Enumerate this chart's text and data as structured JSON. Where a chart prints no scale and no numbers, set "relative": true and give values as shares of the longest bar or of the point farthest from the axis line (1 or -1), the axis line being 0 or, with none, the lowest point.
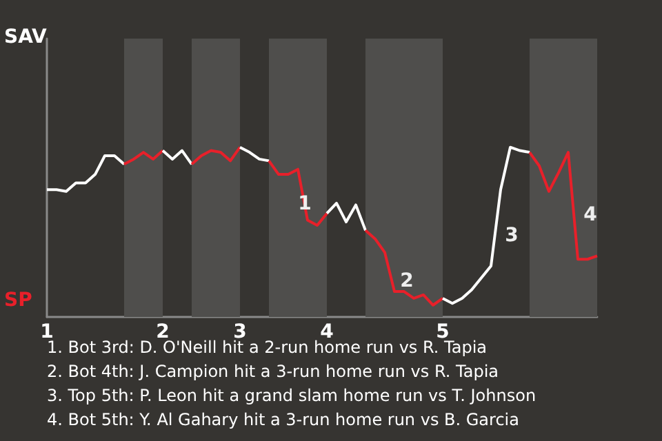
{
  "chart_data": {
    "type": "line",
    "relative": true,
    "categories": [
      "1",
      null,
      null,
      null,
      null,
      null,
      null,
      null,
      null,
      null,
      null,
      null,
      "2",
      null,
      null,
      null,
      null,
      null,
      null,
      null,
      "3",
      null,
      null,
      null,
      null,
      null,
      null,
      null,
      null,
      "4",
      null,
      null,
      null,
      null,
      null,
      null,
      null,
      null,
      null,
      null,
      null,
      "5",
      null,
      null,
      null,
      null,
      null,
      null,
      null,
      null,
      null,
      null,
      null,
      null,
      null,
      null,
      null,
      null
    ],
    "marker": "none",
    "line_style": "solid",
    "series": [
      {
        "color": "#ffffff",
        "values": [
          0.75,
          0.75,
          0.74,
          0.79,
          0.79,
          0.84,
          0.95,
          0.95,
          0.9,
          null,
          null,
          null,
          null,
          null,
          null,
          null,
          null,
          null,
          null,
          null,
          null,
          null,
          null,
          null,
          null,
          null,
          null,
          null,
          null,
          null,
          null,
          null,
          null,
          null,
          null,
          null,
          null,
          null,
          null,
          null,
          null,
          null,
          null,
          null,
          null,
          null,
          null,
          null,
          null,
          null,
          null,
          null,
          null,
          null,
          null,
          null,
          null,
          null
        ]
      },
      {
        "color": "#e8202a",
        "values": [
          null,
          null,
          null,
          null,
          null,
          null,
          null,
          null,
          0.9,
          0.93,
          0.97,
          0.93,
          0.98,
          null,
          null,
          null,
          null,
          null,
          null,
          null,
          null,
          null,
          null,
          null,
          null,
          null,
          null,
          null,
          null,
          null,
          null,
          null,
          null,
          null,
          null,
          null,
          null,
          null,
          null,
          null,
          null,
          null,
          null,
          null,
          null,
          null,
          null,
          null,
          null,
          null,
          null,
          null,
          null,
          null,
          null,
          null,
          null,
          null
        ]
      },
      {
        "color": "#ffffff",
        "values": [
          null,
          null,
          null,
          null,
          null,
          null,
          null,
          null,
          null,
          null,
          null,
          null,
          0.98,
          0.93,
          0.98,
          0.9,
          null,
          null,
          null,
          null,
          null,
          null,
          null,
          null,
          null,
          null,
          null,
          null,
          null,
          null,
          null,
          null,
          null,
          null,
          null,
          null,
          null,
          null,
          null,
          null,
          null,
          null,
          null,
          null,
          null,
          null,
          null,
          null,
          null,
          null,
          null,
          null,
          null,
          null,
          null,
          null,
          null,
          null
        ]
      },
      {
        "color": "#e8202a",
        "values": [
          null,
          null,
          null,
          null,
          null,
          null,
          null,
          null,
          null,
          null,
          null,
          null,
          null,
          null,
          null,
          0.9,
          0.95,
          0.98,
          0.97,
          0.92,
          1,
          null,
          null,
          null,
          null,
          null,
          null,
          null,
          null,
          null,
          null,
          null,
          null,
          null,
          null,
          null,
          null,
          null,
          null,
          null,
          null,
          null,
          null,
          null,
          null,
          null,
          null,
          null,
          null,
          null,
          null,
          null,
          null,
          null,
          null,
          null,
          null,
          null
        ]
      },
      {
        "color": "#ffffff",
        "values": [
          null,
          null,
          null,
          null,
          null,
          null,
          null,
          null,
          null,
          null,
          null,
          null,
          null,
          null,
          null,
          null,
          null,
          null,
          null,
          null,
          1,
          0.97,
          0.93,
          0.92,
          null,
          null,
          null,
          null,
          null,
          null,
          null,
          null,
          null,
          null,
          null,
          null,
          null,
          null,
          null,
          null,
          null,
          null,
          null,
          null,
          null,
          null,
          null,
          null,
          null,
          null,
          null,
          null,
          null,
          null,
          null,
          null,
          null,
          null
        ]
      },
      {
        "color": "#e8202a",
        "values": [
          null,
          null,
          null,
          null,
          null,
          null,
          null,
          null,
          null,
          null,
          null,
          null,
          null,
          null,
          null,
          null,
          null,
          null,
          null,
          null,
          null,
          null,
          null,
          0.92,
          0.84,
          0.84,
          0.87,
          0.57,
          0.54,
          0.61,
          null,
          null,
          null,
          null,
          null,
          null,
          null,
          null,
          null,
          null,
          null,
          null,
          null,
          null,
          null,
          null,
          null,
          null,
          null,
          null,
          null,
          null,
          null,
          null,
          null,
          null,
          null,
          null
        ]
      },
      {
        "color": "#ffffff",
        "values": [
          null,
          null,
          null,
          null,
          null,
          null,
          null,
          null,
          null,
          null,
          null,
          null,
          null,
          null,
          null,
          null,
          null,
          null,
          null,
          null,
          null,
          null,
          null,
          null,
          null,
          null,
          null,
          null,
          null,
          0.61,
          0.67,
          0.56,
          0.66,
          0.51,
          null,
          null,
          null,
          null,
          null,
          null,
          null,
          null,
          null,
          null,
          null,
          null,
          null,
          null,
          null,
          null,
          null,
          null,
          null,
          null,
          null,
          null,
          null,
          null
        ]
      },
      {
        "color": "#e8202a",
        "values": [
          null,
          null,
          null,
          null,
          null,
          null,
          null,
          null,
          null,
          null,
          null,
          null,
          null,
          null,
          null,
          null,
          null,
          null,
          null,
          null,
          null,
          null,
          null,
          null,
          null,
          null,
          null,
          null,
          null,
          null,
          null,
          null,
          null,
          0.51,
          0.46,
          0.38,
          0.15,
          0.15,
          0.11,
          0.13,
          0.07,
          0.11,
          null,
          null,
          null,
          null,
          null,
          null,
          null,
          null,
          null,
          null,
          null,
          null,
          null,
          null,
          null,
          null
        ]
      },
      {
        "color": "#ffffff",
        "values": [
          null,
          null,
          null,
          null,
          null,
          null,
          null,
          null,
          null,
          null,
          null,
          null,
          null,
          null,
          null,
          null,
          null,
          null,
          null,
          null,
          null,
          null,
          null,
          null,
          null,
          null,
          null,
          null,
          null,
          null,
          null,
          null,
          null,
          null,
          null,
          null,
          null,
          null,
          null,
          null,
          null,
          0.11,
          0.08,
          0.11,
          0.16,
          0.23,
          0.3,
          0.75,
          1,
          0.98,
          0.97,
          null,
          null,
          null,
          null,
          null,
          null,
          null
        ]
      },
      {
        "color": "#e8202a",
        "values": [
          null,
          null,
          null,
          null,
          null,
          null,
          null,
          null,
          null,
          null,
          null,
          null,
          null,
          null,
          null,
          null,
          null,
          null,
          null,
          null,
          null,
          null,
          null,
          null,
          null,
          null,
          null,
          null,
          null,
          null,
          null,
          null,
          null,
          null,
          null,
          null,
          null,
          null,
          null,
          null,
          null,
          null,
          null,
          null,
          null,
          null,
          null,
          null,
          null,
          null,
          0.97,
          0.89,
          0.74,
          0.85,
          0.97,
          0.34,
          0.34,
          0.36
        ]
      }
    ],
    "annotations": [
      "SAV",
      "SP",
      "1",
      "2",
      "3",
      "4",
      "1. Bot 3rd: D. O'Neill hit a 2-run home run vs R. Tapia",
      "2. Bot 4th: J. Campion hit a 3-run home run vs R. Tapia",
      "3. Top 5th: P. Leon hit a grand slam home run vs T. Johnson",
      "4. Bot 5th: Y. Al Gahary hit a 3-run home run vs B. Garcia"
    ]
  }
}
